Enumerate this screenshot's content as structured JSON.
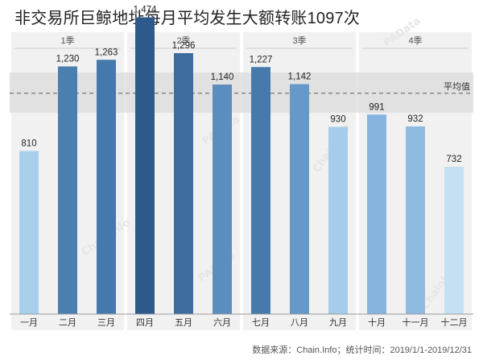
{
  "title": "非交易所巨鲸地址每月平均发生大额转账1097次",
  "source": "数据来源：Chain.Info；统计时间：2019/1/1-2019/12/31",
  "colors": {
    "panel": "#f1f1f1",
    "band": "#dedede",
    "avg_line": "#777777",
    "bar_palette": [
      "#a8d0ea",
      "#4a7fb0",
      "#4579ab",
      "#2d5a8a",
      "#3d6d9f",
      "#5b8dbf",
      "#4779ad",
      "#6698c8",
      "#a5cdea",
      "#86b4df",
      "#90bbe0",
      "#c4e0f3"
    ]
  },
  "watermarks": [
    "PAData",
    "ChainInfo"
  ],
  "chart_data": {
    "type": "bar",
    "categories": [
      "一月",
      "二月",
      "三月",
      "四月",
      "五月",
      "六月",
      "七月",
      "八月",
      "九月",
      "十月",
      "十一月",
      "十二月"
    ],
    "values": [
      810,
      1230,
      1263,
      1474,
      1296,
      1140,
      1227,
      1142,
      930,
      991,
      932,
      732
    ],
    "value_labels": [
      "810",
      "1,230",
      "1,263",
      "1,474",
      "1,296",
      "1,140",
      "1,227",
      "1,142",
      "930",
      "991",
      "932",
      "732"
    ],
    "groups": [
      {
        "label": "1季",
        "months": [
          0,
          1,
          2
        ]
      },
      {
        "label": "2季",
        "months": [
          3,
          4,
          5
        ]
      },
      {
        "label": "3季",
        "months": [
          6,
          7,
          8
        ]
      },
      {
        "label": "4季",
        "months": [
          9,
          10,
          11
        ]
      }
    ],
    "average": {
      "label": "平均值",
      "value": 1097,
      "band": [
        1000,
        1200
      ]
    },
    "ylim": [
      0,
      1600
    ],
    "grid": false,
    "legend": "none"
  }
}
